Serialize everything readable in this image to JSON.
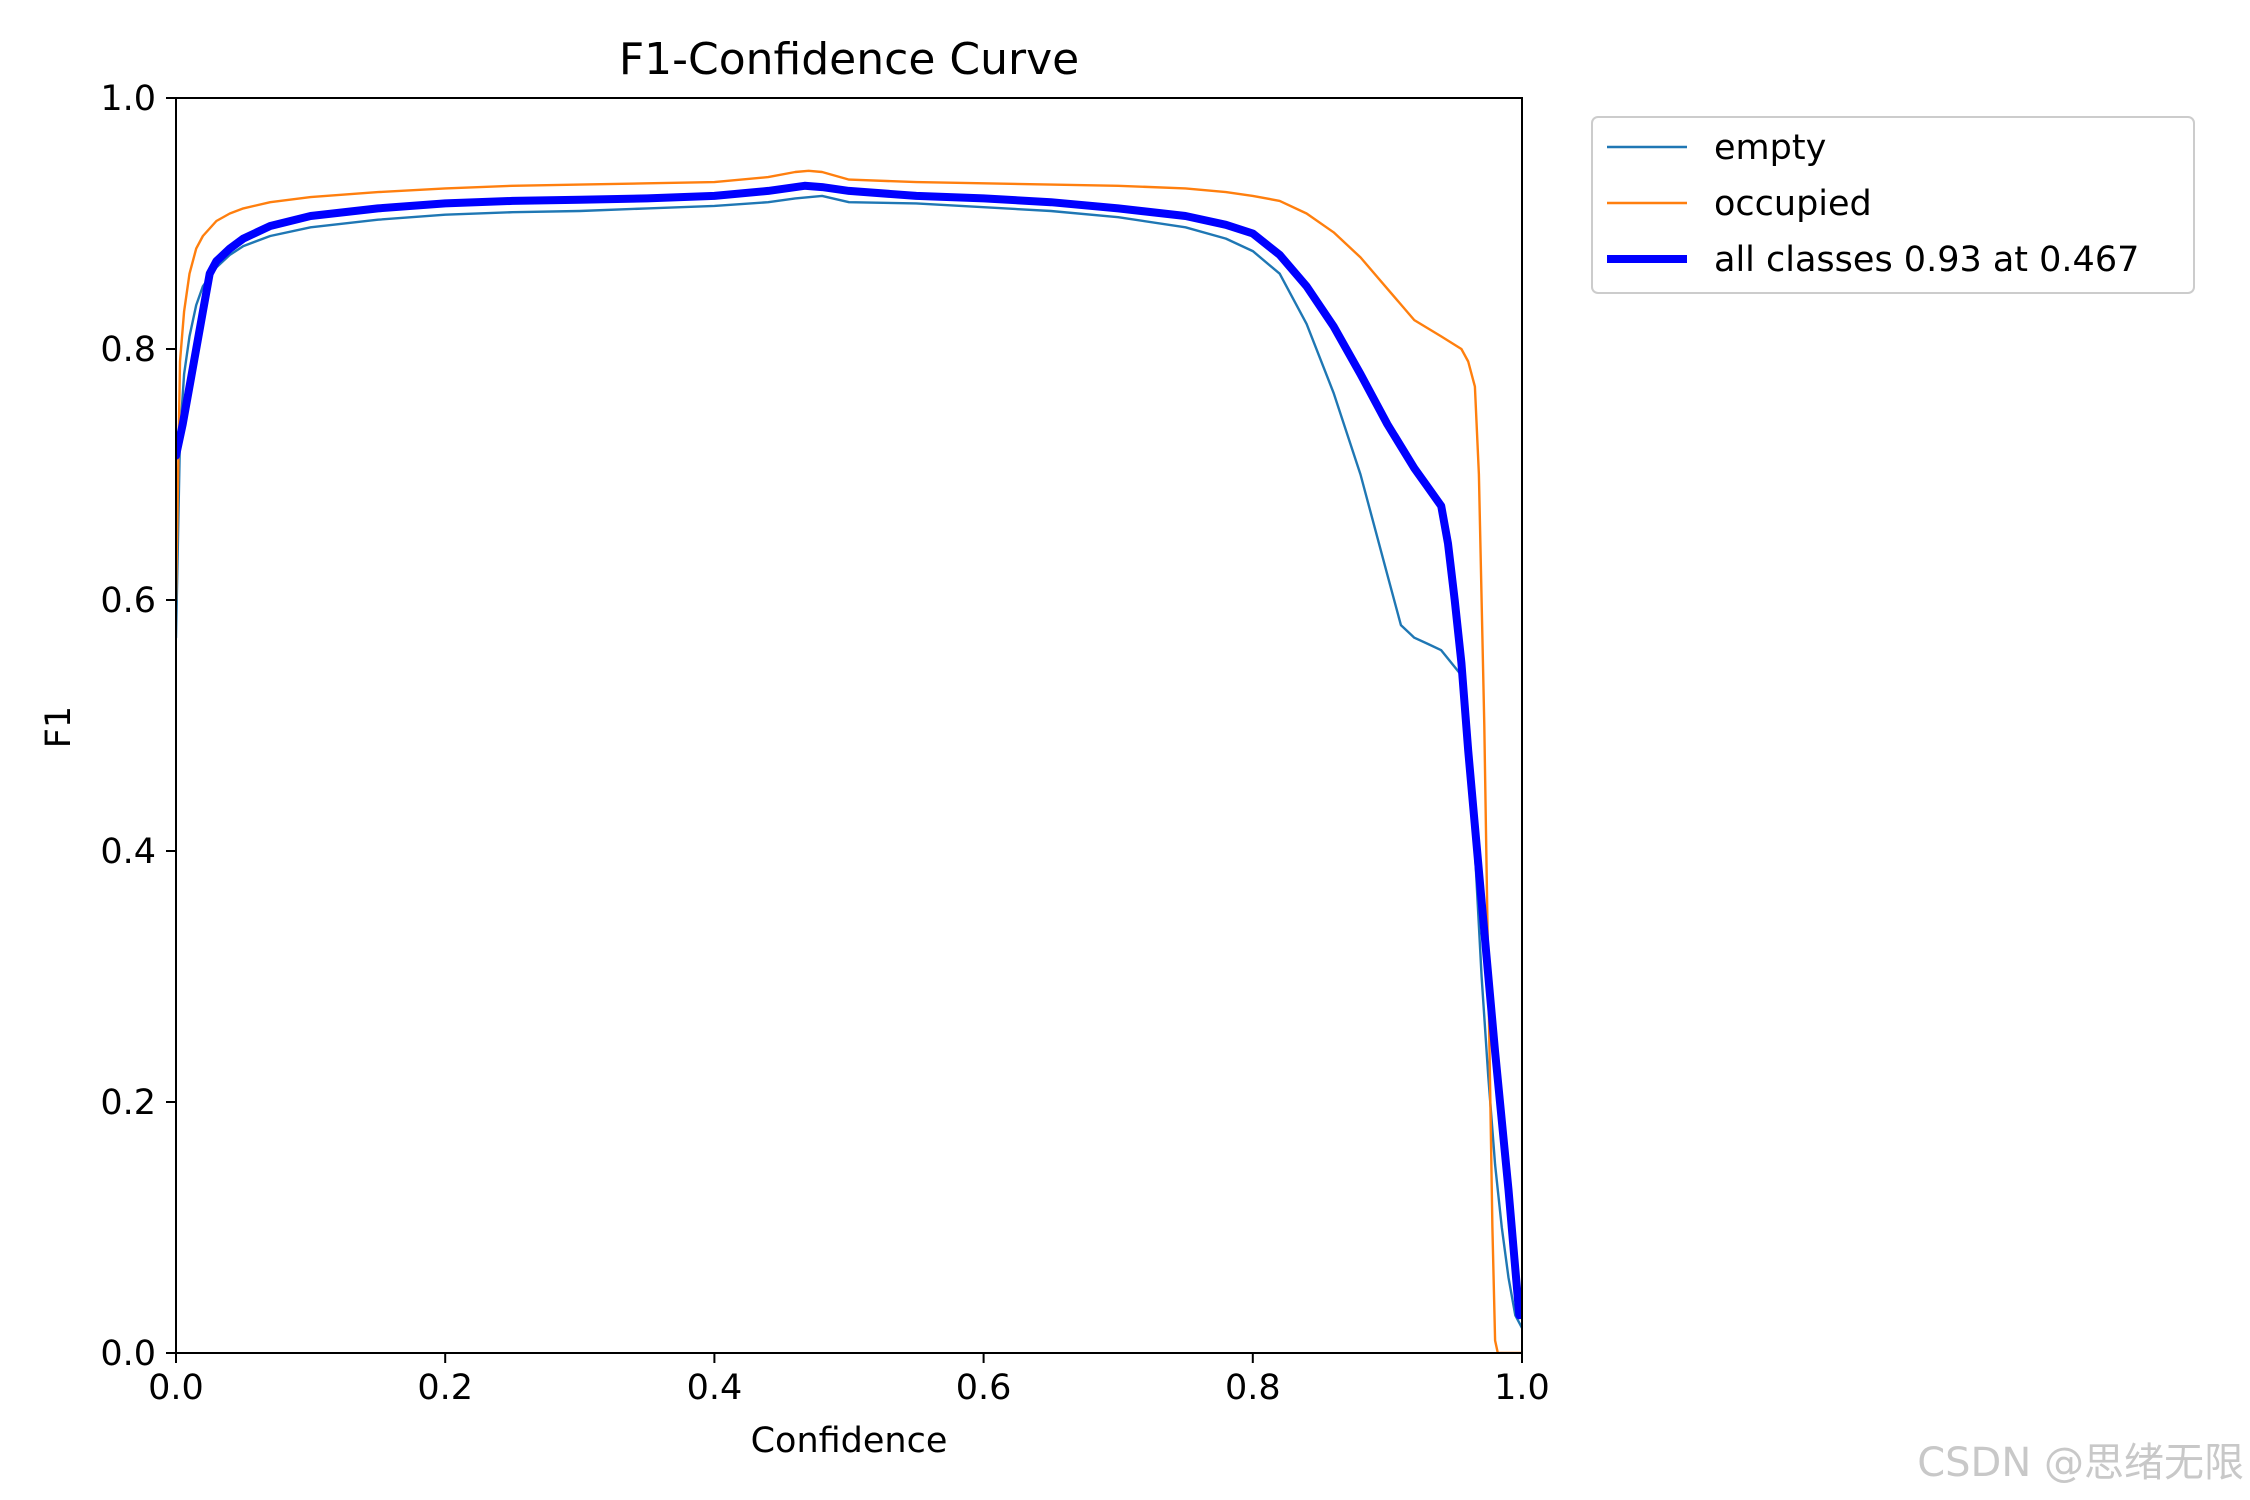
{
  "chart_data": {
    "type": "line",
    "title": "F1-Confidence Curve",
    "xlabel": "Confidence",
    "ylabel": "F1",
    "xlim": [
      0,
      1
    ],
    "ylim": [
      0,
      1
    ],
    "xticks": [
      "0.0",
      "0.2",
      "0.4",
      "0.6",
      "0.8",
      "1.0"
    ],
    "yticks": [
      "0.0",
      "0.2",
      "0.4",
      "0.6",
      "0.8",
      "1.0"
    ],
    "legend_position": "outside-top-right",
    "series": [
      {
        "name": "empty",
        "color": "#1f77b4",
        "line_width": "thin",
        "x": [
          0.0,
          0.003,
          0.006,
          0.01,
          0.015,
          0.02,
          0.03,
          0.04,
          0.05,
          0.07,
          0.1,
          0.15,
          0.2,
          0.25,
          0.3,
          0.35,
          0.4,
          0.44,
          0.46,
          0.48,
          0.5,
          0.55,
          0.6,
          0.65,
          0.7,
          0.75,
          0.78,
          0.8,
          0.82,
          0.84,
          0.86,
          0.88,
          0.9,
          0.91,
          0.92,
          0.93,
          0.94,
          0.955,
          0.965,
          0.97,
          0.975,
          0.98,
          0.985,
          0.99,
          0.995,
          1.0
        ],
        "values": [
          0.57,
          0.73,
          0.78,
          0.81,
          0.835,
          0.85,
          0.865,
          0.875,
          0.882,
          0.89,
          0.897,
          0.903,
          0.907,
          0.909,
          0.91,
          0.912,
          0.914,
          0.917,
          0.92,
          0.922,
          0.917,
          0.916,
          0.913,
          0.91,
          0.905,
          0.897,
          0.888,
          0.878,
          0.86,
          0.82,
          0.765,
          0.7,
          0.62,
          0.58,
          0.57,
          0.565,
          0.56,
          0.54,
          0.4,
          0.3,
          0.22,
          0.15,
          0.1,
          0.06,
          0.03,
          0.02
        ]
      },
      {
        "name": "occupied",
        "color": "#ff7f0e",
        "line_width": "thin",
        "x": [
          0.0,
          0.003,
          0.006,
          0.01,
          0.015,
          0.02,
          0.03,
          0.04,
          0.05,
          0.07,
          0.1,
          0.15,
          0.2,
          0.25,
          0.3,
          0.35,
          0.4,
          0.44,
          0.46,
          0.47,
          0.48,
          0.5,
          0.55,
          0.6,
          0.65,
          0.7,
          0.75,
          0.78,
          0.8,
          0.82,
          0.84,
          0.86,
          0.88,
          0.9,
          0.92,
          0.94,
          0.955,
          0.96,
          0.965,
          0.968,
          0.972,
          0.975,
          0.978,
          0.98,
          0.982,
          0.99,
          1.0
        ],
        "values": [
          0.6,
          0.79,
          0.83,
          0.86,
          0.88,
          0.89,
          0.902,
          0.908,
          0.912,
          0.917,
          0.921,
          0.925,
          0.928,
          0.93,
          0.931,
          0.932,
          0.933,
          0.937,
          0.941,
          0.942,
          0.941,
          0.935,
          0.933,
          0.932,
          0.931,
          0.93,
          0.928,
          0.925,
          0.922,
          0.918,
          0.908,
          0.893,
          0.873,
          0.848,
          0.823,
          0.81,
          0.8,
          0.79,
          0.77,
          0.7,
          0.5,
          0.3,
          0.1,
          0.01,
          0.0,
          0.0,
          0.0
        ]
      },
      {
        "name": "all classes 0.93 at 0.467",
        "color": "#0000ff",
        "line_width": "thick",
        "x": [
          0.0,
          0.005,
          0.01,
          0.015,
          0.02,
          0.025,
          0.03,
          0.04,
          0.05,
          0.07,
          0.1,
          0.15,
          0.2,
          0.25,
          0.3,
          0.35,
          0.4,
          0.44,
          0.467,
          0.48,
          0.5,
          0.55,
          0.6,
          0.65,
          0.7,
          0.75,
          0.78,
          0.8,
          0.82,
          0.84,
          0.86,
          0.88,
          0.9,
          0.92,
          0.93,
          0.94,
          0.945,
          0.95,
          0.955,
          0.96,
          0.97,
          0.98,
          0.99,
          0.998
        ],
        "values": [
          0.715,
          0.74,
          0.77,
          0.8,
          0.83,
          0.86,
          0.87,
          0.88,
          0.888,
          0.898,
          0.906,
          0.912,
          0.916,
          0.918,
          0.919,
          0.92,
          0.922,
          0.926,
          0.93,
          0.929,
          0.926,
          0.922,
          0.92,
          0.917,
          0.912,
          0.906,
          0.899,
          0.892,
          0.875,
          0.85,
          0.818,
          0.78,
          0.74,
          0.705,
          0.69,
          0.675,
          0.645,
          0.6,
          0.55,
          0.48,
          0.36,
          0.24,
          0.13,
          0.03
        ]
      }
    ]
  },
  "watermark": "CSDN @思绪无限"
}
